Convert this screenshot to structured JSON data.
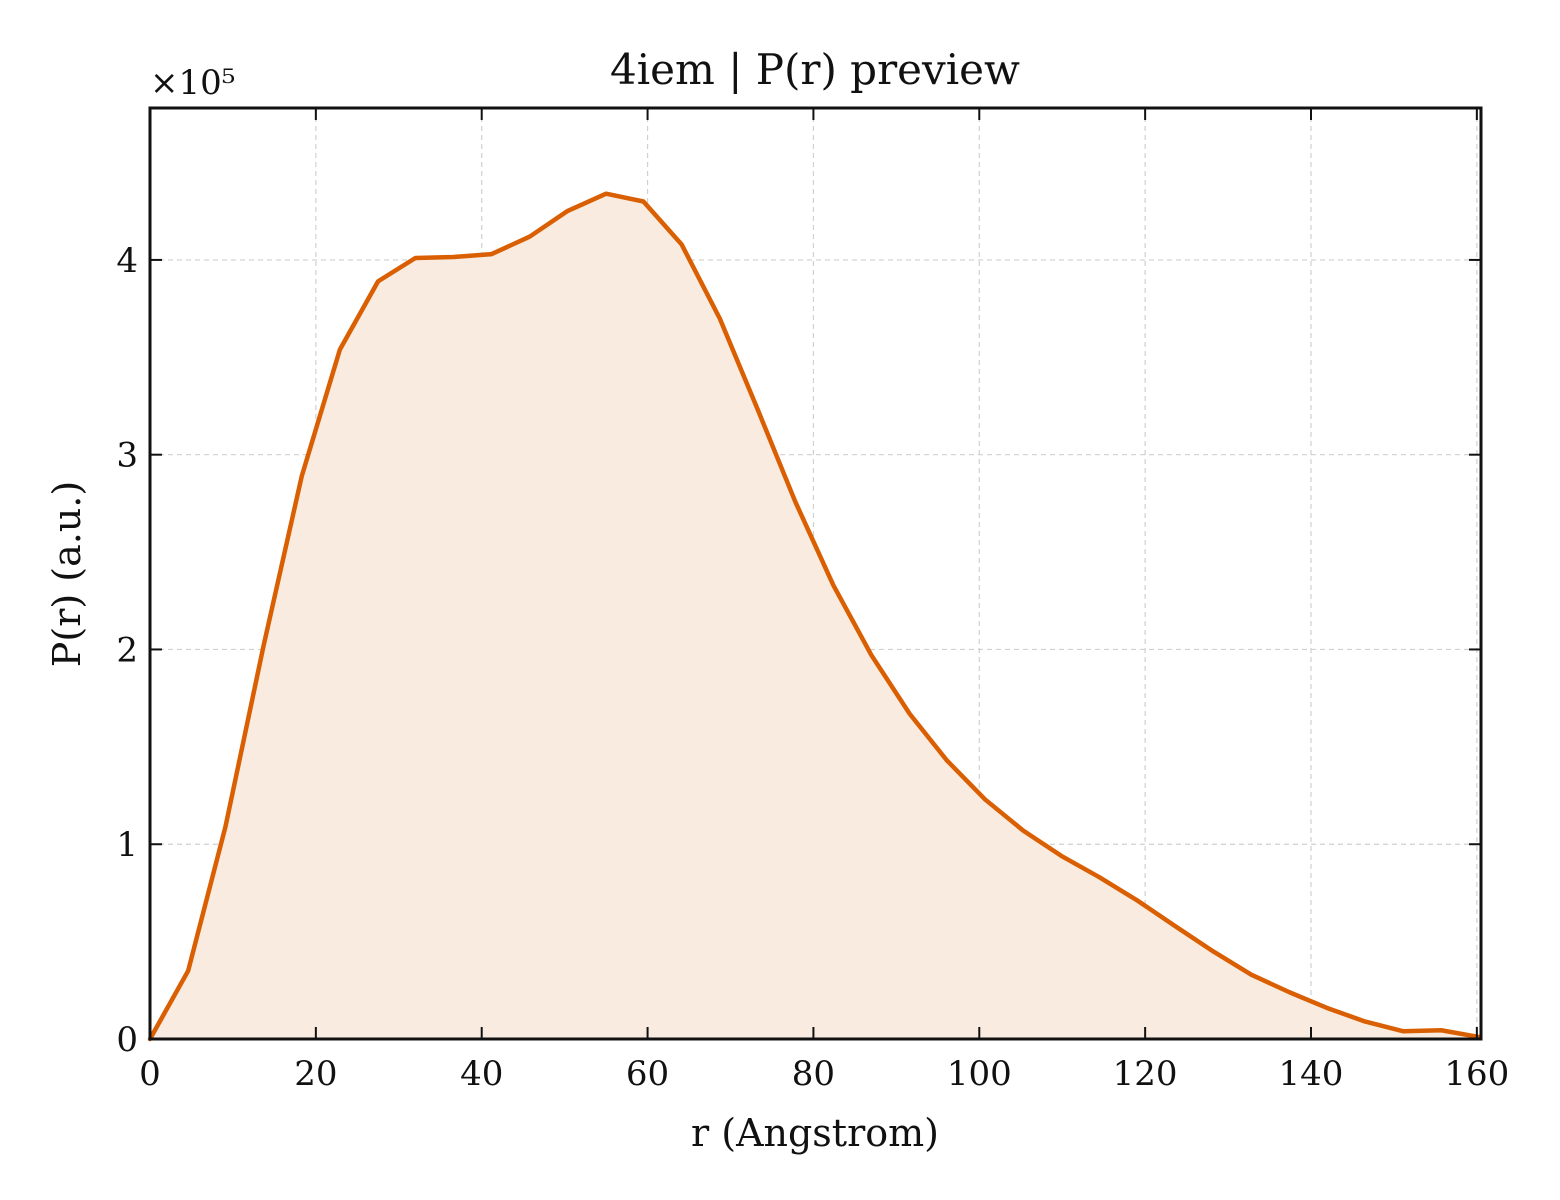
{
  "chart_data": {
    "type": "area",
    "title": "4iem | P(r) preview",
    "xlabel": "r (Angstrom)",
    "ylabel": "P(r) (a.u.)",
    "y_offset_label": "×10⁵",
    "xlim": [
      0,
      160.5
    ],
    "ylim": [
      0,
      4.78
    ],
    "y_scale": 100000,
    "grid": true,
    "legend": "none",
    "line_color": "#d95f02",
    "fill_color": "#f9ebe0",
    "x_ticks": [
      0,
      20,
      40,
      60,
      80,
      100,
      120,
      140,
      160
    ],
    "x_tick_labels": [
      "0",
      "20",
      "40",
      "60",
      "80",
      "100",
      "120",
      "140",
      "160"
    ],
    "y_ticks": [
      0,
      1,
      2,
      3,
      4
    ],
    "y_tick_labels": [
      "0",
      "1",
      "2",
      "3",
      "4"
    ],
    "series": [
      {
        "x": [
          0,
          4.6,
          9.1,
          13.7,
          18.3,
          22.9,
          27.5,
          32.0,
          36.6,
          41.2,
          45.8,
          50.3,
          55.0,
          59.5,
          64.1,
          68.7,
          73.3,
          77.8,
          82.4,
          87.0,
          91.6,
          96.1,
          100.7,
          105.3,
          109.9,
          114.5,
          119.1,
          123.6,
          128.2,
          132.8,
          137.4,
          141.9,
          146.5,
          151.1,
          155.7,
          160.3
        ],
        "y": [
          0.0,
          0.35,
          1.09,
          2.02,
          2.89,
          3.54,
          3.89,
          4.01,
          4.015,
          4.03,
          4.12,
          4.25,
          4.34,
          4.3,
          4.08,
          3.7,
          3.23,
          2.76,
          2.33,
          1.97,
          1.67,
          1.43,
          1.23,
          1.07,
          0.94,
          0.83,
          0.71,
          0.58,
          0.45,
          0.33,
          0.24,
          0.16,
          0.09,
          0.04,
          0.045,
          0.01
        ]
      }
    ]
  }
}
